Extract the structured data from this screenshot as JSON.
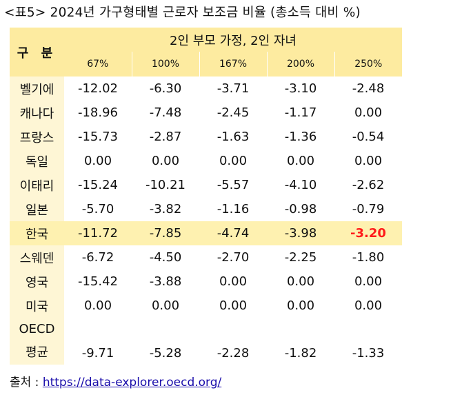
{
  "title": "<표5> 2024년 가구형태별 근로자 보조금 비율 (총소득 대비 %)",
  "header": {
    "gubun": "구 분",
    "group": "2인 부모 가정, 2인 자녀",
    "columns": [
      "67%",
      "100%",
      "167%",
      "200%",
      "250%"
    ]
  },
  "rows": [
    {
      "country": "벨기에",
      "values": [
        "-12.02",
        "-6.30",
        "-3.71",
        "-3.10",
        "-2.48"
      ]
    },
    {
      "country": "캐나다",
      "values": [
        "-18.96",
        "-7.48",
        "-2.45",
        "-1.17",
        "0.00"
      ]
    },
    {
      "country": "프랑스",
      "values": [
        "-15.73",
        "-2.87",
        "-1.63",
        "-1.36",
        "-0.54"
      ]
    },
    {
      "country": "독일",
      "values": [
        "0.00",
        "0.00",
        "0.00",
        "0.00",
        "0.00"
      ]
    },
    {
      "country": "이태리",
      "values": [
        "-15.24",
        "-10.21",
        "-5.57",
        "-4.10",
        "-2.62"
      ]
    },
    {
      "country": "일본",
      "values": [
        "-5.70",
        "-3.82",
        "-1.16",
        "-0.98",
        "-0.79"
      ]
    },
    {
      "country": "한국",
      "values": [
        "-11.72",
        "-7.85",
        "-4.74",
        "-3.98",
        "-3.20"
      ]
    },
    {
      "country": "스웨덴",
      "values": [
        "-6.72",
        "-4.50",
        "-2.70",
        "-2.25",
        "-1.80"
      ]
    },
    {
      "country": "영국",
      "values": [
        "-15.42",
        "-3.88",
        "0.00",
        "0.00",
        "0.00"
      ]
    },
    {
      "country": "미국",
      "values": [
        "0.00",
        "0.00",
        "0.00",
        "0.00",
        "0.00"
      ]
    },
    {
      "country_line1": "OECD",
      "country_line2": "평균",
      "values": [
        "-9.71",
        "-5.28",
        "-2.28",
        "-1.82",
        "-1.33"
      ]
    }
  ],
  "colors": {
    "header_bg": "#fdeba0",
    "label_bg": "#fef6d5",
    "highlight_row_bg": "#fef1b0",
    "highlight_value": "#ff1a1a"
  },
  "source": {
    "label": "출처 :",
    "link": "https://data-explorer.oecd.org/"
  }
}
